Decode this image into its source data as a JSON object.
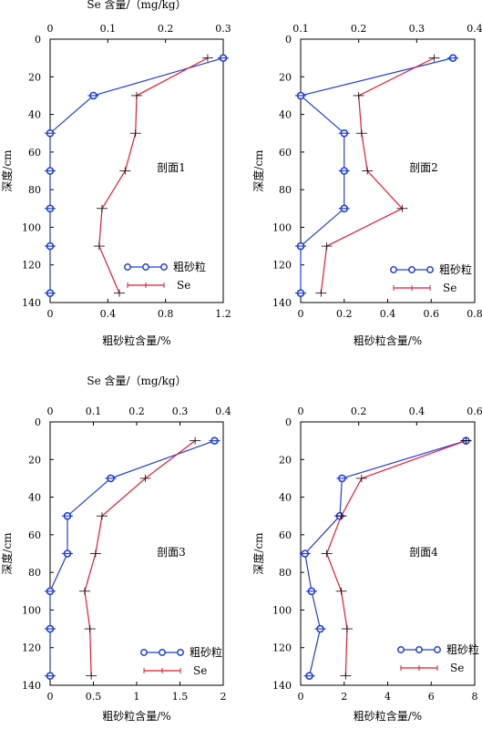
{
  "chart_data": [
    {
      "type": "line",
      "panel_label": "剖面1",
      "ylabel": "深度/cm",
      "xlabel_bottom": "粗砂粒含量/%",
      "xlabel_top": "Se 含量/（mg/kg）",
      "ylim": [
        0,
        140
      ],
      "yticks": [
        "0",
        "20",
        "40",
        "60",
        "80",
        "100",
        "120",
        "140"
      ],
      "xlim_bottom": [
        0,
        1.2
      ],
      "xticks_bottom": [
        "0",
        "0.4",
        "0.8",
        "1.2"
      ],
      "xlim_top": [
        0,
        0.3
      ],
      "xticks_top": [
        "0",
        "0.1",
        "0.2",
        "0.3"
      ],
      "legend": "right",
      "series": [
        {
          "name": "粗砂粒",
          "axis": "bottom",
          "color": "#1f3fdd",
          "points": [
            [
              1.2,
              10
            ],
            [
              0.3,
              30
            ],
            [
              0,
              50
            ],
            [
              0,
              70
            ],
            [
              0,
              90
            ],
            [
              0,
              110
            ],
            [
              0,
              135
            ]
          ]
        },
        {
          "name": "Se",
          "axis": "top",
          "color": "#e8192c",
          "points": [
            [
              0.273,
              10
            ],
            [
              0.15,
              30
            ],
            [
              0.148,
              50
            ],
            [
              0.13,
              70
            ],
            [
              0.09,
              90
            ],
            [
              0.085,
              110
            ],
            [
              0.12,
              135
            ]
          ]
        }
      ]
    },
    {
      "type": "line",
      "panel_label": "剖面2",
      "ylabel": "深度/cm",
      "xlabel_bottom": "粗砂粒含量/%",
      "xlabel_top": "",
      "ylim": [
        0,
        140
      ],
      "yticks": [
        "0",
        "20",
        "40",
        "60",
        "80",
        "100",
        "120",
        "140"
      ],
      "xlim_bottom": [
        0,
        0.8
      ],
      "xticks_bottom": [
        "0",
        "0.2",
        "0.4",
        "0.6",
        "0.8"
      ],
      "xlim_top": [
        0.1,
        0.4
      ],
      "xticks_top": [
        "0.1",
        "0.2",
        "0.3",
        "0.4"
      ],
      "legend": "right",
      "series": [
        {
          "name": "粗砂粒",
          "axis": "bottom",
          "color": "#1f3fdd",
          "points": [
            [
              0.7,
              10
            ],
            [
              0,
              30
            ],
            [
              0.2,
              50
            ],
            [
              0.2,
              70
            ],
            [
              0.2,
              90
            ],
            [
              0,
              110
            ],
            [
              0,
              135
            ]
          ]
        },
        {
          "name": "Se",
          "axis": "top",
          "color": "#e8192c",
          "points": [
            [
              0.33,
              10
            ],
            [
              0.2,
              30
            ],
            [
              0.205,
              50
            ],
            [
              0.215,
              70
            ],
            [
              0.275,
              90
            ],
            [
              0.145,
              110
            ],
            [
              0.135,
              135
            ]
          ]
        }
      ]
    },
    {
      "type": "line",
      "panel_label": "剖面3",
      "ylabel": "深度/cm",
      "xlabel_bottom": "粗砂粒含量/%",
      "xlabel_top": "Se 含量/（mg/kg）",
      "ylim": [
        0,
        140
      ],
      "yticks": [
        "0",
        "20",
        "40",
        "60",
        "80",
        "100",
        "120",
        "140"
      ],
      "xlim_bottom": [
        0,
        2
      ],
      "xticks_bottom": [
        "0",
        "0.5",
        "1",
        "1.5",
        "2"
      ],
      "xlim_top": [
        0,
        0.4
      ],
      "xticks_top": [
        "0",
        "0.1",
        "0.2",
        "0.3",
        "0.4"
      ],
      "legend": "right",
      "series": [
        {
          "name": "粗砂粒",
          "axis": "bottom",
          "color": "#1f3fdd",
          "points": [
            [
              1.9,
              10
            ],
            [
              0.7,
              30
            ],
            [
              0.2,
              50
            ],
            [
              0.2,
              70
            ],
            [
              0,
              90
            ],
            [
              0,
              110
            ],
            [
              0,
              135
            ]
          ]
        },
        {
          "name": "Se",
          "axis": "top",
          "color": "#e8192c",
          "points": [
            [
              0.335,
              10
            ],
            [
              0.22,
              30
            ],
            [
              0.12,
              50
            ],
            [
              0.105,
              70
            ],
            [
              0.08,
              90
            ],
            [
              0.092,
              110
            ],
            [
              0.095,
              135
            ]
          ]
        }
      ]
    },
    {
      "type": "line",
      "panel_label": "剖面4",
      "ylabel": "深度/cm",
      "xlabel_bottom": "粗砂粒含量/%",
      "xlabel_top": "",
      "ylim": [
        0,
        140
      ],
      "yticks": [
        "0",
        "20",
        "40",
        "60",
        "80",
        "100",
        "120",
        "140"
      ],
      "xlim_bottom": [
        0,
        8
      ],
      "xticks_bottom": [
        "0",
        "2",
        "4",
        "6",
        "8"
      ],
      "xlim_top": [
        0,
        0.6
      ],
      "xticks_top": [
        "0",
        "0.2",
        "0.4",
        "0.6"
      ],
      "legend": "right",
      "series": [
        {
          "name": "粗砂粒",
          "axis": "bottom",
          "color": "#1f3fdd",
          "points": [
            [
              7.6,
              10
            ],
            [
              1.9,
              30
            ],
            [
              1.8,
              50
            ],
            [
              0.2,
              70
            ],
            [
              0.5,
              90
            ],
            [
              0.9,
              110
            ],
            [
              0.4,
              135
            ]
          ]
        },
        {
          "name": "Se",
          "axis": "top",
          "color": "#e8192c",
          "points": [
            [
              0.57,
              10
            ],
            [
              0.21,
              30
            ],
            [
              0.14,
              50
            ],
            [
              0.09,
              70
            ],
            [
              0.14,
              90
            ],
            [
              0.16,
              110
            ],
            [
              0.155,
              135
            ]
          ]
        }
      ]
    }
  ]
}
